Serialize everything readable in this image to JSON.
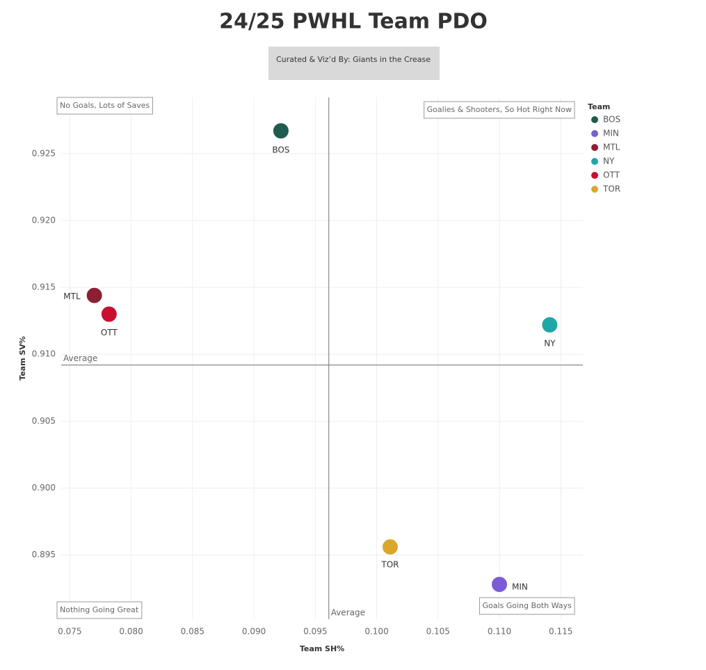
{
  "chart_data": {
    "type": "scatter",
    "title": "24/25 PWHL Team PDO",
    "subtitle": "Curated & Viz’d By: Giants in the Crease",
    "x_label": "Team SH%",
    "y_label": "Team SV%",
    "legend_title": "Team",
    "legend_position": "right",
    "grid": true,
    "xlim": [
      0.0743,
      0.1168
    ],
    "ylim": [
      0.8902,
      0.9292
    ],
    "xticks": [
      0.075,
      {
        "value": 0.08,
        "label": "0.080"
      },
      0.085,
      {
        "value": 0.09,
        "label": "0.090"
      },
      0.095,
      {
        "value": 0.1,
        "label": "0.100"
      },
      0.105,
      {
        "value": 0.11,
        "label": "0.110"
      },
      0.115
    ],
    "yticks": [
      0.895,
      {
        "value": 0.9,
        "label": "0.900"
      },
      0.905,
      {
        "value": 0.91,
        "label": "0.910"
      },
      0.915,
      {
        "value": 0.92,
        "label": "0.920"
      },
      0.925
    ],
    "reference_lines": {
      "label": "Average",
      "x": 0.0961,
      "y": 0.9092
    },
    "annotations": [
      {
        "text": "No Goals, Lots of Saves",
        "position": "top-left"
      },
      {
        "text": "Goalies & Shooters, So Hot Right Now",
        "position": "top-right"
      },
      {
        "text": "Nothing Going Great",
        "position": "bottom-left"
      },
      {
        "text": "Goals Going Both Ways",
        "position": "bottom-right"
      }
    ],
    "series": [
      {
        "name": "BOS",
        "color": "#1f5c4f",
        "x": [
          0.0922
        ],
        "values": [
          0.9267
        ]
      },
      {
        "name": "MIN",
        "color": "#7b5cd6",
        "x": [
          0.11
        ],
        "values": [
          0.8928
        ]
      },
      {
        "name": "MTL",
        "color": "#8b2032",
        "x": [
          0.077
        ],
        "values": [
          0.9144
        ]
      },
      {
        "name": "NY",
        "color": "#1fa6a6",
        "x": [
          0.1141
        ],
        "values": [
          0.9122
        ]
      },
      {
        "name": "OTT",
        "color": "#c8102e",
        "x": [
          0.0782
        ],
        "values": [
          0.913
        ]
      },
      {
        "name": "TOR",
        "color": "#d9a82b",
        "x": [
          0.1011
        ],
        "values": [
          0.8956
        ]
      }
    ]
  }
}
